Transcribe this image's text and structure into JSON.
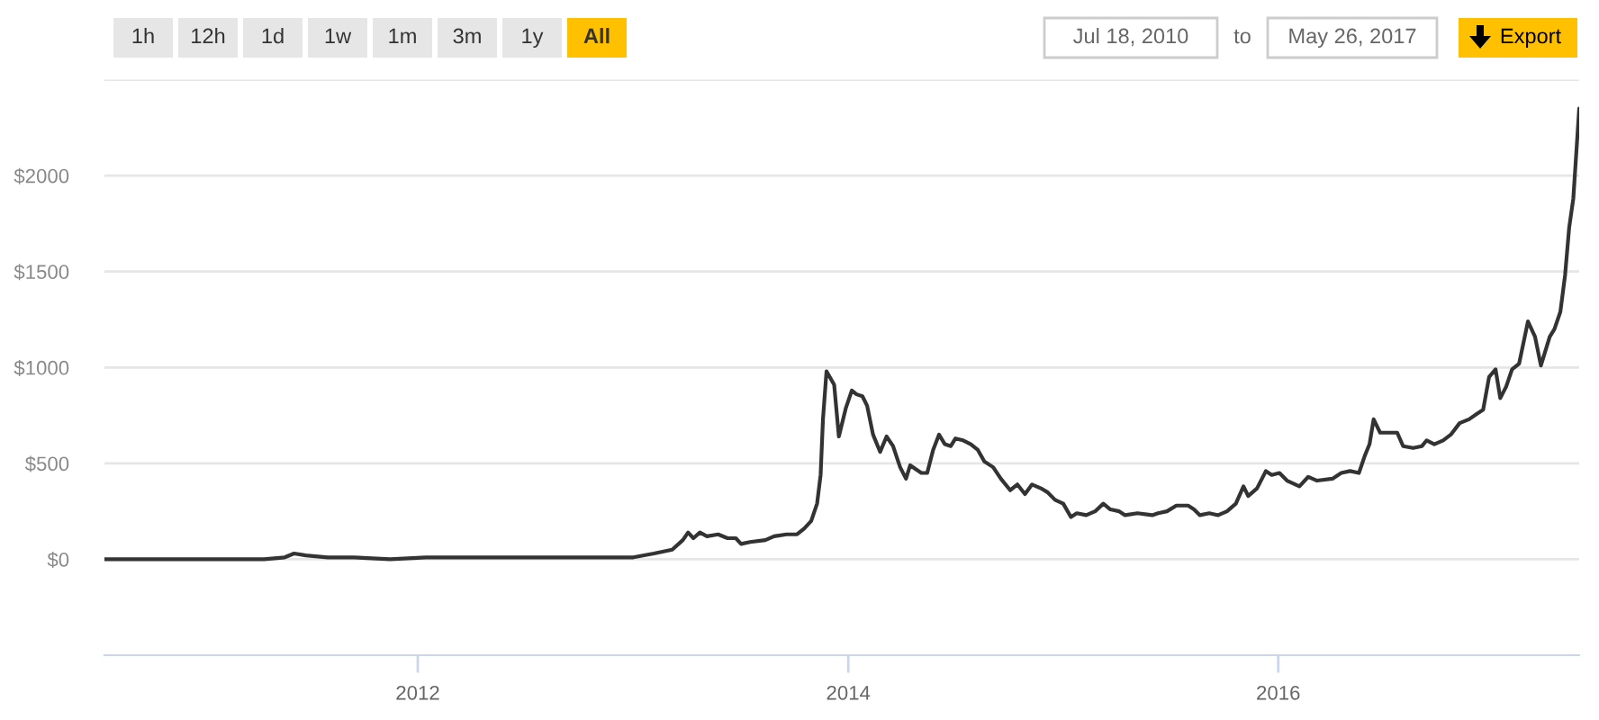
{
  "chart_data": {
    "type": "line",
    "annotations": [
      "1h",
      "12h",
      "1d",
      "1w",
      "1m",
      "3m",
      "1y",
      "All",
      "Jul 18, 2010",
      "to",
      "May 26, 2017",
      "Export"
    ],
    "x": [
      "2010-07-18",
      "2010-11-01",
      "2011-02-01",
      "2011-04-15",
      "2011-05-20",
      "2011-06-05",
      "2011-06-25",
      "2011-08-01",
      "2011-09-15",
      "2011-11-15",
      "2012-01-15",
      "2012-04-15",
      "2012-07-01",
      "2012-09-01",
      "2012-11-01",
      "2013-01-01",
      "2013-02-05",
      "2013-03-08",
      "2013-03-26",
      "2013-04-04",
      "2013-04-13",
      "2013-04-24",
      "2013-05-06",
      "2013-05-25",
      "2013-06-10",
      "2013-06-24",
      "2013-07-03",
      "2013-07-18",
      "2013-08-13",
      "2013-08-28",
      "2013-09-18",
      "2013-10-06",
      "2013-10-18",
      "2013-10-30",
      "2013-11-09",
      "2013-11-15",
      "2013-11-19",
      "2013-11-25",
      "2013-12-08",
      "2013-12-16",
      "2013-12-28",
      "2014-01-07",
      "2014-01-15",
      "2014-01-25",
      "2014-02-02",
      "2014-02-12",
      "2014-02-24",
      "2014-03-07",
      "2014-03-18",
      "2014-03-30",
      "2014-04-09",
      "2014-04-16",
      "2014-05-05",
      "2014-05-15",
      "2014-05-25",
      "2014-06-04",
      "2014-06-14",
      "2014-06-24",
      "2014-07-02",
      "2014-07-15",
      "2014-07-28",
      "2014-08-09",
      "2014-08-20",
      "2014-09-04",
      "2014-09-17",
      "2014-10-03",
      "2014-10-15",
      "2014-10-28",
      "2014-11-09",
      "2014-11-24",
      "2014-12-05",
      "2014-12-18",
      "2015-01-01",
      "2015-01-14",
      "2015-01-24",
      "2015-02-09",
      "2015-02-24",
      "2015-03-10",
      "2015-03-22",
      "2015-04-06",
      "2015-04-16",
      "2015-05-07",
      "2015-06-01",
      "2015-06-11",
      "2015-06-26",
      "2015-07-12",
      "2015-08-01",
      "2015-08-11",
      "2015-08-21",
      "2015-09-06",
      "2015-09-21",
      "2015-10-06",
      "2015-10-21",
      "2015-11-03",
      "2015-11-11",
      "2015-11-26",
      "2015-12-11",
      "2015-12-21",
      "2016-01-03",
      "2016-01-16",
      "2016-02-06",
      "2016-02-21",
      "2016-03-07",
      "2016-04-02",
      "2016-04-17",
      "2016-05-02",
      "2016-05-17",
      "2016-05-27",
      "2016-06-04",
      "2016-06-11",
      "2016-06-22",
      "2016-07-21",
      "2016-07-31",
      "2016-08-17",
      "2016-09-01",
      "2016-09-09",
      "2016-09-22",
      "2016-10-07",
      "2016-10-20",
      "2016-11-04",
      "2016-11-20",
      "2016-12-04",
      "2016-12-14",
      "2016-12-24",
      "2017-01-04",
      "2017-01-12",
      "2017-01-22",
      "2017-02-01",
      "2017-02-13",
      "2017-02-28",
      "2017-03-12",
      "2017-03-22",
      "2017-04-06",
      "2017-04-14",
      "2017-04-24",
      "2017-05-02",
      "2017-05-09",
      "2017-05-16",
      "2017-05-26"
    ],
    "values": [
      0,
      0,
      0,
      0,
      10,
      30,
      20,
      10,
      10,
      0,
      10,
      10,
      10,
      10,
      10,
      10,
      30,
      50,
      100,
      140,
      110,
      140,
      120,
      130,
      110,
      110,
      80,
      90,
      100,
      120,
      130,
      130,
      160,
      200,
      290,
      440,
      730,
      980,
      910,
      640,
      790,
      880,
      860,
      850,
      800,
      650,
      560,
      640,
      590,
      480,
      420,
      490,
      450,
      450,
      570,
      650,
      600,
      590,
      630,
      620,
      600,
      570,
      510,
      480,
      420,
      360,
      390,
      340,
      390,
      370,
      350,
      310,
      290,
      220,
      240,
      230,
      250,
      290,
      260,
      250,
      230,
      240,
      230,
      240,
      250,
      280,
      280,
      260,
      230,
      240,
      230,
      250,
      290,
      380,
      330,
      370,
      460,
      440,
      450,
      410,
      380,
      430,
      410,
      420,
      450,
      460,
      450,
      540,
      600,
      730,
      660,
      660,
      590,
      580,
      590,
      620,
      600,
      620,
      650,
      710,
      730,
      760,
      780,
      950,
      990,
      840,
      900,
      990,
      1020,
      1240,
      1160,
      1010,
      1160,
      1200,
      1290,
      1480,
      1730,
      1880,
      2350
    ],
    "color": "#333333",
    "xlim": [
      "2010-07-18",
      "2017-05-26"
    ],
    "xticks": [
      "2012",
      "2014",
      "2016"
    ],
    "ylim": [
      -500,
      2500
    ],
    "yticks": [
      {
        "value": 0,
        "label": "$0"
      },
      {
        "value": 500,
        "label": "$500"
      },
      {
        "value": 1000,
        "label": "$1000"
      },
      {
        "value": 1500,
        "label": "$1500"
      },
      {
        "value": 2000,
        "label": "$2000"
      },
      {
        "value": 2500,
        "label": null
      }
    ],
    "grid": "y"
  }
}
